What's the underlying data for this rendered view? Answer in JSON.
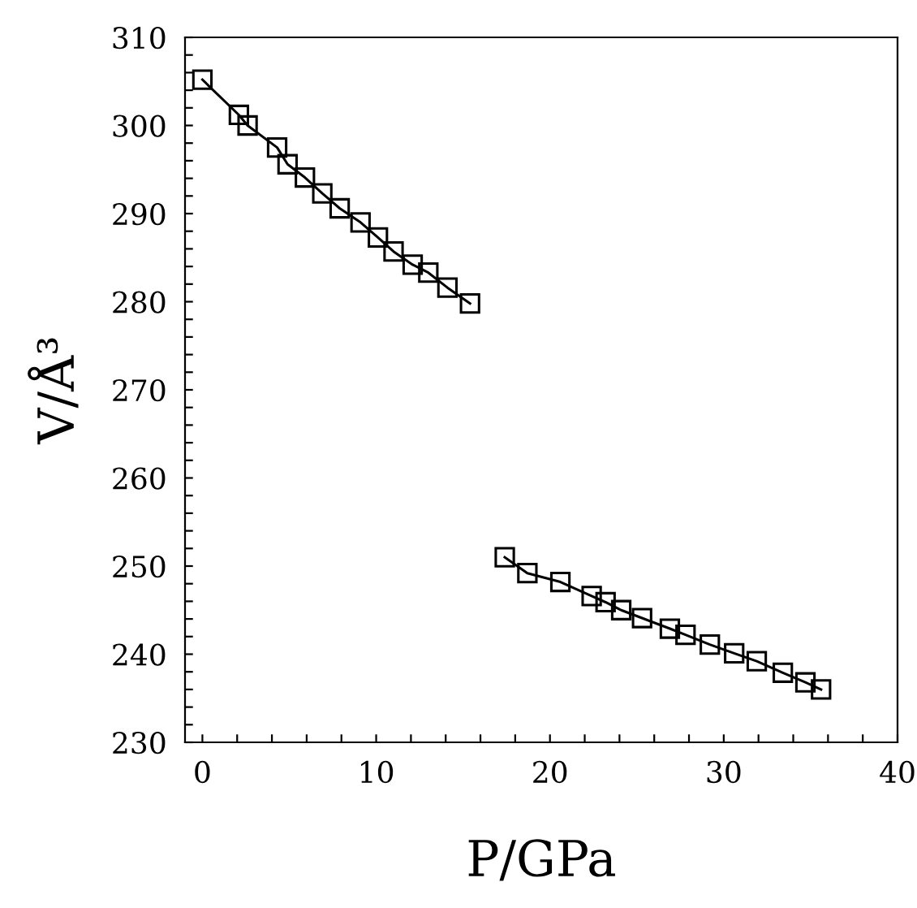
{
  "chart_data": {
    "type": "line",
    "xlabel": "P/GPa",
    "ylabel": "V/Å³",
    "series": [
      {
        "color": "#000000",
        "x": [
          0,
          2.1,
          2.6,
          4.3,
          4.9,
          5.9,
          6.9,
          7.9,
          9.1,
          10.1,
          11.0,
          12.1,
          13.0,
          14.1,
          15.4
        ],
        "values": [
          305.2,
          301.2,
          300.0,
          297.5,
          295.6,
          294.1,
          292.3,
          290.6,
          289.0,
          287.3,
          285.7,
          284.2,
          283.3,
          281.6,
          279.8
        ]
      },
      {
        "color": "#000000",
        "x": [
          17.4,
          18.7,
          20.6,
          22.4,
          23.2,
          24.1,
          25.3,
          26.9,
          27.8,
          29.2,
          30.6,
          31.9,
          33.4,
          34.7,
          35.6
        ],
        "values": [
          251.0,
          249.2,
          248.2,
          246.6,
          245.9,
          245.0,
          244.1,
          242.9,
          242.2,
          241.1,
          240.1,
          239.2,
          237.9,
          236.8,
          236.0
        ]
      }
    ],
    "marker": "square",
    "line_style": "solid",
    "grid": false,
    "legend": false,
    "xlim": [
      -1,
      40
    ],
    "ylim": [
      230,
      310
    ],
    "xticks": [
      0,
      {
        "value": 2,
        "label": null
      },
      {
        "value": 4,
        "label": null
      },
      {
        "value": 6,
        "label": null
      },
      {
        "value": 8,
        "label": null
      },
      10,
      {
        "value": 12,
        "label": null
      },
      {
        "value": 14,
        "label": null
      },
      {
        "value": 16,
        "label": null
      },
      {
        "value": 18,
        "label": null
      },
      20,
      {
        "value": 22,
        "label": null
      },
      {
        "value": 24,
        "label": null
      },
      {
        "value": 26,
        "label": null
      },
      {
        "value": 28,
        "label": null
      },
      30,
      {
        "value": 32,
        "label": null
      },
      {
        "value": 34,
        "label": null
      },
      {
        "value": 36,
        "label": null
      },
      {
        "value": 38,
        "label": null
      },
      40
    ],
    "yticks": [
      230,
      {
        "value": 232,
        "label": null
      },
      {
        "value": 234,
        "label": null
      },
      {
        "value": 236,
        "label": null
      },
      {
        "value": 238,
        "label": null
      },
      240,
      {
        "value": 242,
        "label": null
      },
      {
        "value": 244,
        "label": null
      },
      {
        "value": 246,
        "label": null
      },
      {
        "value": 248,
        "label": null
      },
      250,
      {
        "value": 252,
        "label": null
      },
      {
        "value": 254,
        "label": null
      },
      {
        "value": 256,
        "label": null
      },
      {
        "value": 258,
        "label": null
      },
      260,
      {
        "value": 262,
        "label": null
      },
      {
        "value": 264,
        "label": null
      },
      {
        "value": 266,
        "label": null
      },
      {
        "value": 268,
        "label": null
      },
      270,
      {
        "value": 272,
        "label": null
      },
      {
        "value": 274,
        "label": null
      },
      {
        "value": 276,
        "label": null
      },
      {
        "value": 278,
        "label": null
      },
      280,
      {
        "value": 282,
        "label": null
      },
      {
        "value": 284,
        "label": null
      },
      {
        "value": 286,
        "label": null
      },
      {
        "value": 288,
        "label": null
      },
      290,
      {
        "value": 292,
        "label": null
      },
      {
        "value": 294,
        "label": null
      },
      {
        "value": 296,
        "label": null
      },
      {
        "value": 298,
        "label": null
      },
      300,
      {
        "value": 302,
        "label": null
      },
      {
        "value": 304,
        "label": null
      },
      {
        "value": 306,
        "label": null
      },
      {
        "value": 308,
        "label": null
      },
      310
    ]
  }
}
